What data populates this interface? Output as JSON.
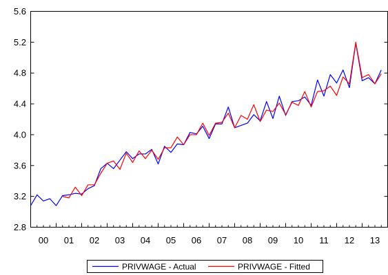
{
  "chart_data": {
    "type": "line",
    "title": "",
    "xlabel": "",
    "ylabel": "",
    "ylim": [
      2.8,
      5.6
    ],
    "yticks": [
      "2.8",
      "3.2",
      "3.6",
      "4.0",
      "4.4",
      "4.8",
      "5.2",
      "5.6"
    ],
    "xlim": [
      2000.0,
      2014.0
    ],
    "xtick_labels": [
      "00",
      "01",
      "02",
      "03",
      "04",
      "05",
      "06",
      "07",
      "08",
      "09",
      "10",
      "11",
      "12",
      "13"
    ],
    "x_start": 2000.0,
    "x_step": 0.25,
    "grid": false,
    "legend_position": "bottom-center",
    "series": [
      {
        "name": "PRIVWAGE - Actual",
        "color": "#0000ff",
        "values": [
          3.08,
          3.22,
          3.14,
          3.17,
          3.08,
          3.21,
          3.22,
          3.24,
          3.23,
          3.3,
          3.34,
          3.56,
          3.63,
          3.56,
          3.67,
          3.78,
          3.69,
          3.75,
          3.75,
          3.81,
          3.62,
          3.85,
          3.77,
          3.88,
          3.87,
          4.03,
          4.01,
          4.11,
          3.95,
          4.14,
          4.14,
          4.36,
          4.09,
          4.12,
          4.15,
          4.26,
          4.18,
          4.43,
          4.21,
          4.5,
          4.25,
          4.43,
          4.44,
          4.49,
          4.38,
          4.71,
          4.5,
          4.78,
          4.67,
          4.84,
          4.61,
          5.19,
          4.7,
          4.74,
          4.66,
          4.84
        ]
      },
      {
        "name": "PRIVWAGE - Fitted",
        "color": "#ff0000",
        "values": [
          null,
          null,
          null,
          null,
          null,
          3.2,
          3.18,
          3.32,
          3.21,
          3.35,
          3.35,
          3.5,
          3.63,
          3.66,
          3.55,
          3.76,
          3.64,
          3.79,
          3.69,
          3.8,
          3.68,
          3.83,
          3.83,
          3.97,
          3.87,
          4.0,
          4.0,
          4.15,
          3.99,
          4.15,
          4.16,
          4.28,
          4.09,
          4.25,
          4.2,
          4.39,
          4.17,
          4.32,
          4.3,
          4.41,
          4.26,
          4.42,
          4.38,
          4.56,
          4.36,
          4.56,
          4.57,
          4.63,
          4.51,
          4.75,
          4.66,
          5.2,
          4.74,
          4.78,
          4.66,
          4.79
        ]
      }
    ]
  }
}
